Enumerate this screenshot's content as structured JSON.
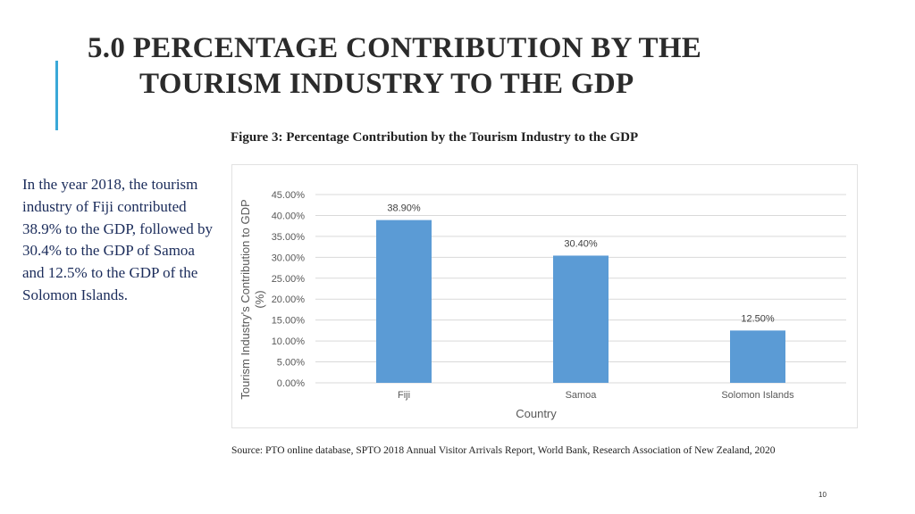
{
  "slide": {
    "title_line1": "5.0 PERCENTAGE CONTRIBUTION BY THE",
    "title_line2": "TOURISM INDUSTRY TO THE GDP",
    "figure_caption": "Figure 3: Percentage Contribution by the Tourism Industry to the GDP",
    "body_text": "In the year 2018, the tourism industry of Fiji contributed 38.9% to the GDP, followed by 30.4% to the GDP of Samoa and 12.5% to the GDP of the Solomon Islands.",
    "source": "Source: PTO online database, SPTO 2018 Annual Visitor Arrivals Report, World Bank, Research Association of New Zealand, 2020",
    "page_number": "10",
    "accent_color": "#3aa8d8"
  },
  "chart_data": {
    "type": "bar",
    "categories": [
      "Fiji",
      "Samoa",
      "Solomon Islands"
    ],
    "values": [
      38.9,
      30.4,
      12.5
    ],
    "data_labels": [
      "38.90%",
      "30.40%",
      "12.50%"
    ],
    "xlabel": "Country",
    "ylabel": "Tourism Industry's Contribution to GDP (%)",
    "ylim": [
      0,
      45
    ],
    "ytick_step": 5,
    "ytick_labels": [
      "0.00%",
      "5.00%",
      "10.00%",
      "15.00%",
      "20.00%",
      "25.00%",
      "30.00%",
      "35.00%",
      "40.00%",
      "45.00%"
    ],
    "grid": true,
    "bar_color": "#5b9bd5"
  }
}
